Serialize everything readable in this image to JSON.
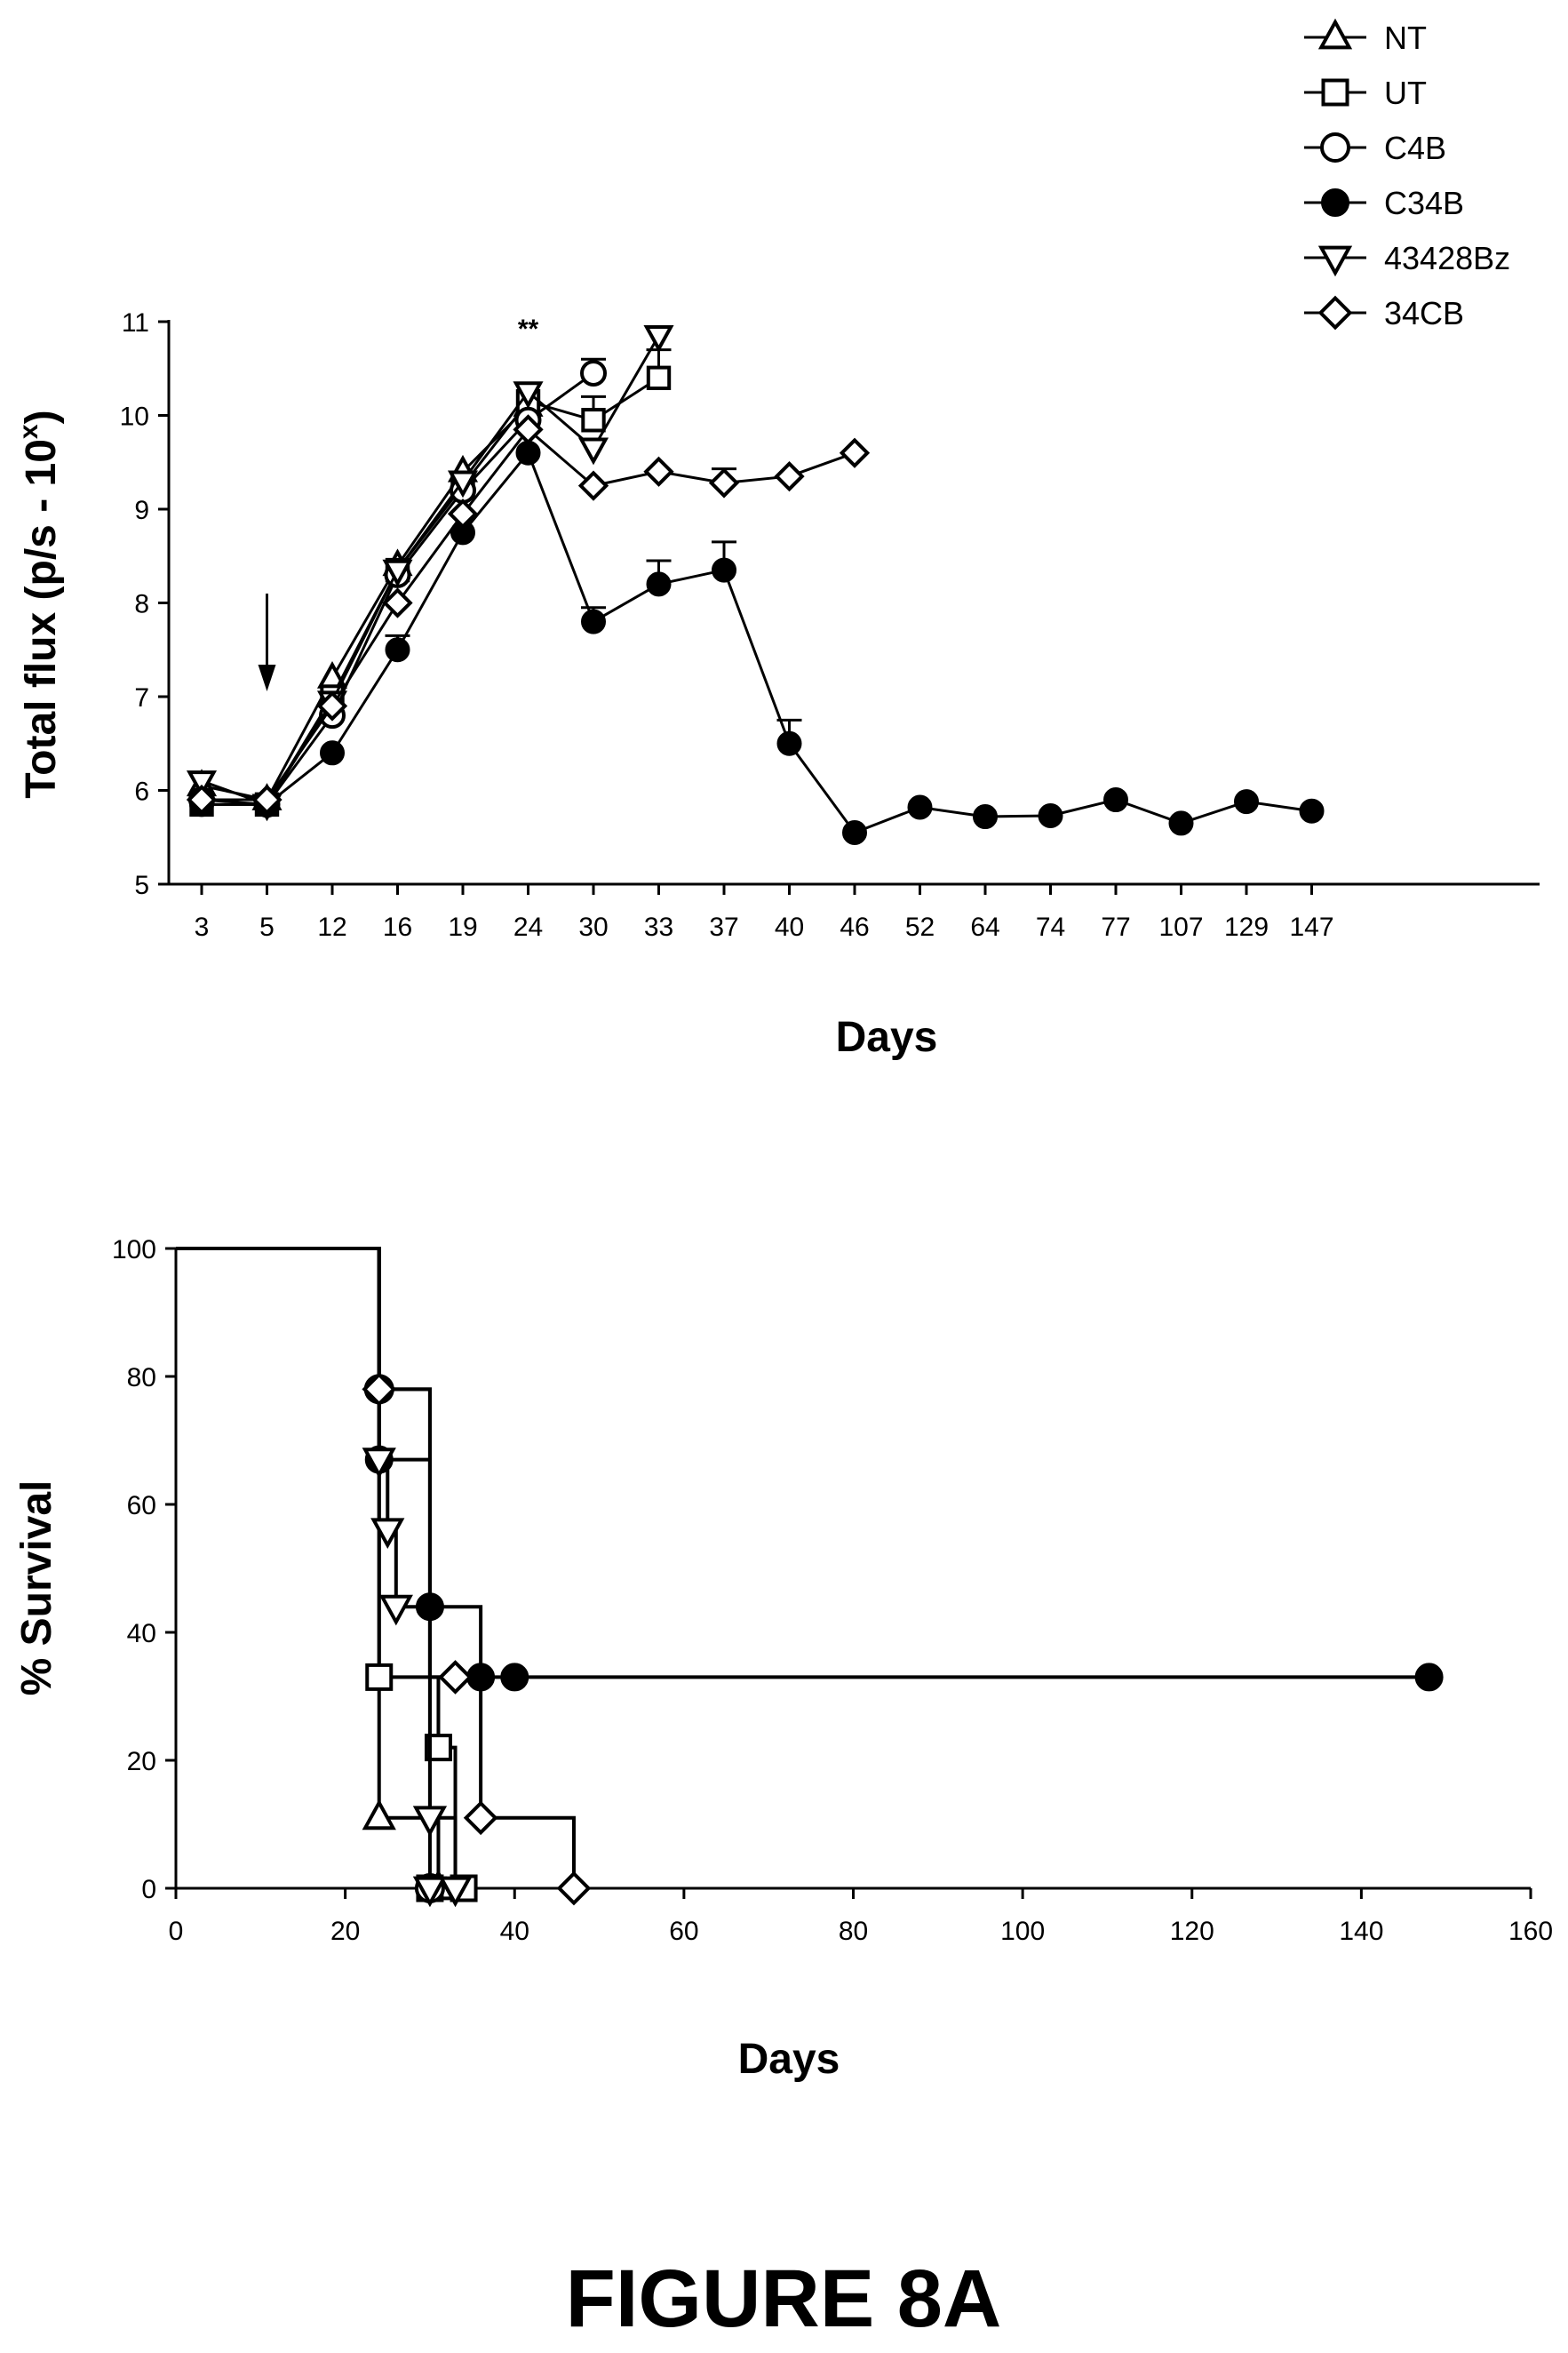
{
  "figure_label": "FIGURE 8A",
  "chart_data": [
    {
      "type": "line",
      "xlabel": "Days",
      "ylabel": "Total flux (p/s - 10",
      "ylabel_superscript": "x",
      "ylabel_close": ")",
      "categories": [
        "3",
        "5",
        "12",
        "16",
        "19",
        "24",
        "30",
        "33",
        "37",
        "40",
        "46",
        "52",
        "64",
        "74",
        "77",
        "107",
        "129",
        "147"
      ],
      "ylim": [
        5,
        11
      ],
      "yticks": [
        "5",
        "6",
        "7",
        "8",
        "9",
        "10",
        "11"
      ],
      "annotation": "**",
      "annotation_x": "24",
      "arrow_at": "5",
      "legend": {
        "position": "top-right",
        "entries": [
          {
            "label": "NT",
            "marker": "triangle-up"
          },
          {
            "label": "UT",
            "marker": "square"
          },
          {
            "label": "C4B",
            "marker": "circle"
          },
          {
            "label": "C34B",
            "marker": "circle-filled"
          },
          {
            "label": "43428Bz",
            "marker": "triangle-down"
          },
          {
            "label": "34CB",
            "marker": "diamond"
          }
        ]
      },
      "series": [
        {
          "name": "NT",
          "marker": "triangle-up",
          "color": "#000000",
          "values": [
            6.05,
            5.9,
            7.2,
            8.4,
            9.4,
            10.1,
            null,
            null,
            null,
            null,
            null,
            null,
            null,
            null,
            null,
            null,
            null,
            null
          ]
        },
        {
          "name": "UT",
          "marker": "square",
          "color": "#000000",
          "values": [
            5.85,
            5.85,
            7.0,
            8.35,
            9.25,
            10.15,
            9.95,
            10.4,
            null,
            null,
            null,
            null,
            null,
            null,
            null,
            null,
            null,
            null
          ],
          "error": [
            null,
            null,
            null,
            null,
            null,
            null,
            0.25,
            0.3,
            null,
            null,
            null,
            null,
            null,
            null,
            null,
            null,
            null,
            null
          ]
        },
        {
          "name": "C4B",
          "marker": "circle",
          "color": "#000000",
          "values": [
            5.9,
            5.85,
            6.8,
            8.3,
            9.2,
            9.95,
            10.45,
            null,
            null,
            null,
            null,
            null,
            null,
            null,
            null,
            null,
            null,
            null
          ],
          "error": [
            null,
            null,
            null,
            null,
            null,
            null,
            0.15,
            null,
            null,
            null,
            null,
            null,
            null,
            null,
            null,
            null,
            null,
            null
          ]
        },
        {
          "name": "C34B",
          "marker": "circle-filled",
          "color": "#000000",
          "values": [
            5.85,
            5.85,
            6.4,
            7.5,
            8.75,
            9.6,
            7.8,
            8.2,
            8.35,
            6.5,
            5.55,
            5.82,
            5.72,
            5.73,
            5.9,
            5.65,
            5.88,
            5.78
          ],
          "error": [
            null,
            null,
            null,
            0.15,
            null,
            null,
            0.15,
            0.25,
            0.3,
            0.25,
            null,
            null,
            null,
            null,
            null,
            null,
            null,
            null
          ]
        },
        {
          "name": "43428Bz",
          "marker": "triangle-down",
          "color": "#000000",
          "values": [
            6.1,
            5.85,
            6.95,
            8.35,
            9.3,
            10.25,
            9.65,
            10.85,
            null,
            null,
            null,
            null,
            null,
            null,
            null,
            null,
            null,
            null
          ]
        },
        {
          "name": "34CB",
          "marker": "diamond",
          "color": "#000000",
          "values": [
            5.9,
            5.9,
            6.9,
            8.0,
            8.95,
            9.85,
            9.25,
            9.4,
            9.28,
            9.35,
            9.6,
            null,
            null,
            null,
            null,
            null,
            null,
            null
          ],
          "error": [
            null,
            null,
            null,
            null,
            null,
            null,
            null,
            null,
            0.15,
            null,
            null,
            null,
            null,
            null,
            null,
            null,
            null,
            null
          ]
        }
      ]
    },
    {
      "type": "line",
      "step": true,
      "xlabel": "Days",
      "ylabel": "% Survival",
      "xlim": [
        0,
        160
      ],
      "ylim": [
        0,
        100
      ],
      "xticks": [
        "0",
        "20",
        "40",
        "60",
        "80",
        "100",
        "120",
        "140",
        "160"
      ],
      "yticks": [
        "0",
        "20",
        "40",
        "60",
        "80",
        "100"
      ],
      "series": [
        {
          "name": "NT",
          "marker": "triangle-up",
          "points": [
            [
              0,
              100
            ],
            [
              24,
              100
            ],
            [
              24,
              11
            ],
            [
              31,
              11
            ],
            [
              31,
              0
            ]
          ],
          "markers": [
            [
              24,
              11
            ],
            [
              31,
              0
            ]
          ]
        },
        {
          "name": "UT",
          "marker": "square",
          "points": [
            [
              0,
              100
            ],
            [
              24,
              100
            ],
            [
              24,
              33
            ],
            [
              31,
              33
            ],
            [
              31,
              22
            ],
            [
              33,
              22
            ],
            [
              33,
              0
            ],
            [
              34,
              0
            ]
          ],
          "markers": [
            [
              24,
              33
            ],
            [
              31,
              22
            ],
            [
              30,
              0
            ],
            [
              34,
              0
            ]
          ]
        },
        {
          "name": "C4B",
          "marker": "circle",
          "points": [
            [
              0,
              100
            ],
            [
              24,
              100
            ],
            [
              24,
              78
            ],
            [
              30,
              78
            ],
            [
              30,
              0
            ]
          ],
          "markers": [
            [
              24,
              78
            ],
            [
              30,
              0
            ]
          ]
        },
        {
          "name": "C34B",
          "marker": "circle-filled",
          "points": [
            [
              0,
              100
            ],
            [
              24,
              100
            ],
            [
              24,
              67
            ],
            [
              30,
              67
            ],
            [
              30,
              44
            ],
            [
              36,
              44
            ],
            [
              36,
              33
            ],
            [
              148,
              33
            ]
          ],
          "markers": [
            [
              24,
              67
            ],
            [
              30,
              44
            ],
            [
              36,
              33
            ],
            [
              40,
              33
            ],
            [
              148,
              33
            ]
          ]
        },
        {
          "name": "43428Bz",
          "marker": "triangle-down",
          "points": [
            [
              0,
              100
            ],
            [
              24,
              100
            ],
            [
              24,
              67
            ],
            [
              25,
              67
            ],
            [
              25,
              56
            ],
            [
              26,
              56
            ],
            [
              26,
              44
            ],
            [
              30,
              44
            ],
            [
              30,
              11
            ],
            [
              33,
              11
            ],
            [
              33,
              0
            ]
          ],
          "markers": [
            [
              24,
              67
            ],
            [
              25,
              56
            ],
            [
              26,
              44
            ],
            [
              30,
              11
            ],
            [
              30,
              0
            ],
            [
              33,
              0
            ]
          ]
        },
        {
          "name": "34CB",
          "marker": "diamond",
          "points": [
            [
              0,
              100
            ],
            [
              24,
              100
            ],
            [
              24,
              78
            ],
            [
              30,
              78
            ],
            [
              30,
              33
            ],
            [
              36,
              33
            ],
            [
              36,
              11
            ],
            [
              47,
              11
            ],
            [
              47,
              0
            ]
          ],
          "markers": [
            [
              24,
              78
            ],
            [
              33,
              33
            ],
            [
              36,
              11
            ],
            [
              47,
              0
            ]
          ]
        }
      ]
    }
  ]
}
